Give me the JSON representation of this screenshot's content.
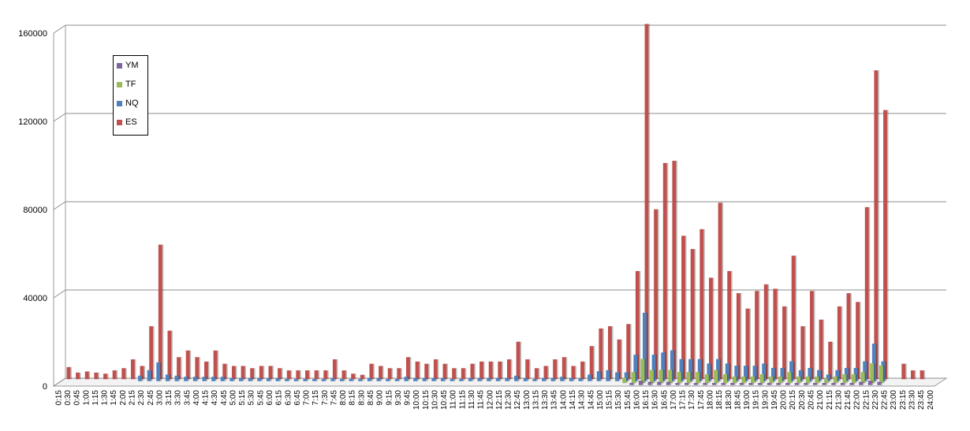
{
  "chart_data": {
    "type": "bar",
    "ylim": [
      0,
      160000
    ],
    "yticks": [
      0,
      40000,
      80000,
      120000,
      160000
    ],
    "grid": true,
    "legend_position": "top-left",
    "categories": [
      "0:15",
      "0:30",
      "0:45",
      "1:00",
      "1:15",
      "1:30",
      "1:45",
      "2:00",
      "2:15",
      "2:30",
      "2:45",
      "3:00",
      "3:15",
      "3:30",
      "3:45",
      "4:00",
      "4:15",
      "4:30",
      "4:45",
      "5:00",
      "5:15",
      "5:30",
      "5:45",
      "6:00",
      "6:15",
      "6:30",
      "6:45",
      "7:00",
      "7:15",
      "7:30",
      "7:45",
      "8:00",
      "8:15",
      "8:30",
      "8:45",
      "9:00",
      "9:15",
      "9:30",
      "9:45",
      "10:00",
      "10:15",
      "10:30",
      "10:45",
      "11:00",
      "11:15",
      "11:30",
      "11:45",
      "12:00",
      "12:15",
      "12:30",
      "12:45",
      "13:00",
      "13:15",
      "13:30",
      "13:45",
      "14:00",
      "14:15",
      "14:30",
      "14:45",
      "15:00",
      "15:15",
      "15:30",
      "15:45",
      "16:00",
      "16:15",
      "16:30",
      "16:45",
      "17:00",
      "17:15",
      "17:30",
      "17:45",
      "18:00",
      "18:15",
      "18:30",
      "18:45",
      "19:00",
      "19:15",
      "19:30",
      "19:45",
      "20:00",
      "20:15",
      "20:30",
      "20:45",
      "21:00",
      "21:15",
      "21:30",
      "21:45",
      "22:00",
      "22:15",
      "22:30",
      "22:45",
      "23:00",
      "23:15",
      "23:30",
      "23:45",
      "24:00"
    ],
    "series": [
      {
        "name": "ES",
        "color": "#C0504D",
        "values": [
          5500,
          3000,
          3500,
          3000,
          2500,
          4000,
          5000,
          9000,
          6000,
          24000,
          61000,
          22000,
          10000,
          13000,
          10000,
          8000,
          13000,
          7000,
          6000,
          6000,
          5000,
          6000,
          6000,
          5000,
          4000,
          4000,
          4000,
          4000,
          4000,
          9000,
          4000,
          2500,
          2000,
          7000,
          6000,
          5000,
          5000,
          10000,
          8000,
          7000,
          9000,
          7000,
          5000,
          5000,
          7000,
          8000,
          8000,
          8000,
          9000,
          17000,
          9000,
          5000,
          6000,
          9000,
          10000,
          6000,
          8000,
          15000,
          23000,
          24000,
          18000,
          25000,
          49000,
          161000,
          77000,
          98000,
          99000,
          65000,
          59000,
          68000,
          46000,
          80000,
          49000,
          39000,
          32000,
          40000,
          43000,
          41000,
          33000,
          56000,
          24000,
          40000,
          27000,
          17000,
          33000,
          39000,
          35000,
          78000,
          140000,
          122000,
          0,
          7000,
          4000,
          4000,
          0,
          0
        ]
      },
      {
        "name": "NQ",
        "color": "#4F81BD",
        "values": [
          0,
          0,
          0,
          0,
          0,
          0,
          0,
          0,
          2500,
          5000,
          8500,
          3000,
          2500,
          2000,
          2000,
          2000,
          2000,
          2000,
          1500,
          1500,
          1500,
          1500,
          1500,
          1500,
          1000,
          1000,
          1000,
          1000,
          1000,
          1500,
          1000,
          1000,
          1000,
          1500,
          1500,
          1000,
          1000,
          2000,
          1500,
          1500,
          1500,
          1500,
          1000,
          1000,
          1500,
          1500,
          1500,
          1500,
          1500,
          2500,
          1500,
          1000,
          1500,
          1500,
          2000,
          1500,
          1500,
          3000,
          4500,
          5000,
          4000,
          4000,
          12000,
          31000,
          12000,
          13000,
          14000,
          10000,
          10000,
          10000,
          8000,
          10000,
          8000,
          7000,
          7000,
          7000,
          8000,
          6000,
          6000,
          9000,
          5000,
          6000,
          5000,
          3000,
          5000,
          6000,
          6000,
          9000,
          17000,
          9000,
          0,
          0,
          0,
          0,
          0,
          0
        ]
      },
      {
        "name": "TF",
        "color": "#9BBB59",
        "values": [
          0,
          0,
          0,
          0,
          0,
          0,
          0,
          0,
          0,
          0,
          0,
          0,
          0,
          0,
          0,
          0,
          0,
          0,
          0,
          0,
          0,
          0,
          0,
          0,
          0,
          0,
          0,
          0,
          0,
          0,
          0,
          0,
          0,
          0,
          0,
          0,
          0,
          0,
          0,
          0,
          0,
          0,
          0,
          0,
          0,
          0,
          0,
          0,
          0,
          0,
          0,
          0,
          0,
          0,
          0,
          0,
          0,
          0,
          0,
          0,
          0,
          2500,
          5000,
          11000,
          6000,
          6000,
          6000,
          5000,
          5000,
          5000,
          4000,
          6000,
          4000,
          3000,
          3000,
          3000,
          4000,
          3000,
          3000,
          5000,
          3000,
          3000,
          3000,
          2000,
          3000,
          4000,
          4000,
          5000,
          9000,
          8000,
          0,
          0,
          0,
          0,
          0,
          0
        ]
      },
      {
        "name": "YM",
        "color": "#8064A2",
        "values": [
          0,
          0,
          0,
          0,
          0,
          0,
          0,
          0,
          0,
          0,
          0,
          0,
          0,
          0,
          0,
          0,
          0,
          0,
          0,
          0,
          0,
          0,
          0,
          0,
          0,
          0,
          0,
          0,
          0,
          0,
          0,
          0,
          0,
          0,
          0,
          0,
          0,
          0,
          0,
          0,
          0,
          0,
          0,
          0,
          0,
          0,
          0,
          0,
          0,
          0,
          0,
          0,
          0,
          0,
          0,
          0,
          0,
          0,
          0,
          0,
          0,
          0,
          1000,
          2000,
          1500,
          1500,
          1500,
          1000,
          1000,
          1000,
          1000,
          1000,
          1000,
          1000,
          1000,
          1000,
          1000,
          1000,
          1000,
          1000,
          1000,
          1000,
          1000,
          1000,
          1000,
          1000,
          1000,
          1500,
          2000,
          1500,
          0,
          0,
          0,
          0,
          0,
          0
        ]
      }
    ],
    "legend_order": [
      "YM",
      "TF",
      "NQ",
      "ES"
    ]
  }
}
